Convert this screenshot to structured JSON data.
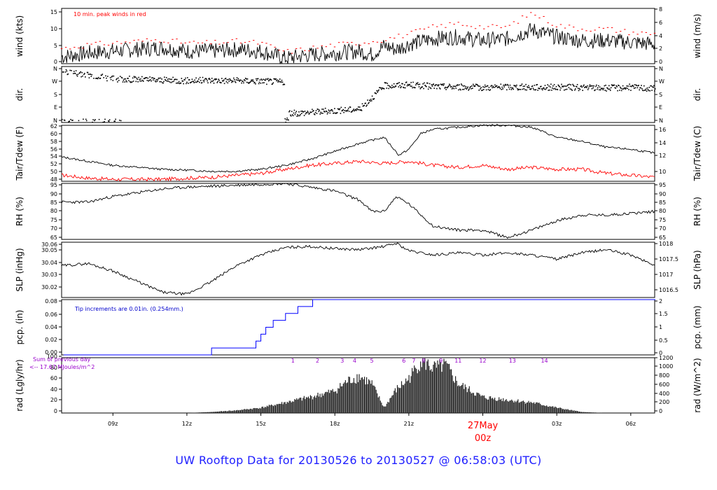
{
  "title": "UW Rooftop Data for 20130526  to  20130527 @ 06:58:03  (UTC)",
  "colors": {
    "frame": "#000000",
    "series": "#000000",
    "tdew": "#ff0000",
    "pcp": "#0000ff",
    "note_red": "#ff0000",
    "note_blue": "#0000cc",
    "purple": "#9900cc",
    "date_label": "#ff0000",
    "title": "#2020ff"
  },
  "time_axis": {
    "tick_labels": [
      "09z",
      "12z",
      "15z",
      "18z",
      "21z",
      "00z",
      "03z",
      "06z"
    ],
    "hours": [
      9,
      12,
      15,
      18,
      21,
      24,
      27,
      30
    ],
    "date_label": "27May",
    "date_sub_label": "00z",
    "start_hour": 6.92,
    "end_hour": 30.97
  },
  "panels": [
    {
      "id": "wind",
      "left_label": "wind (kts)",
      "right_label": "wind (m/s)",
      "left_ticks": [
        0,
        5,
        10,
        15
      ],
      "right_ticks": [
        0,
        2,
        4,
        6,
        8
      ],
      "ylim": [
        0,
        15.5
      ],
      "annotation": "10 min. peak winds in red"
    },
    {
      "id": "dir",
      "left_label": "dir.",
      "right_label": "dir.",
      "left_ticks": [
        "N",
        "E",
        "S",
        "W",
        "N"
      ],
      "right_ticks": [
        "N",
        "E",
        "S",
        "W",
        "N"
      ],
      "ylim": [
        0,
        360
      ]
    },
    {
      "id": "temp",
      "left_label": "Tair/Tdew (F)",
      "right_label": "Tair/Tdew (C)",
      "left_ticks": [
        48,
        50,
        52,
        54,
        56,
        58,
        60,
        62
      ],
      "right_ticks": [
        10,
        12,
        14,
        16
      ],
      "ylim": [
        48,
        62
      ]
    },
    {
      "id": "rh",
      "left_label": "RH (%)",
      "right_label": "RH (%)",
      "left_ticks": [
        65,
        70,
        75,
        80,
        85,
        90,
        95
      ],
      "right_ticks": [
        65,
        70,
        75,
        80,
        85,
        90,
        95
      ],
      "ylim": [
        65,
        95
      ]
    },
    {
      "id": "slp",
      "left_label": "SLP (inHg)",
      "right_label": "SLP (hPa)",
      "left_ticks": [
        "30.02",
        "30.03",
        "30.04",
        "30.05",
        "30.06"
      ],
      "right_ticks": [
        "1016.5",
        "1017",
        "1017.5",
        "1018"
      ],
      "ylim": [
        30.01,
        30.062
      ]
    },
    {
      "id": "pcp",
      "left_label": "pcp. (in)",
      "right_label": "pcp. (mm)",
      "left_ticks": [
        "0.00",
        "0.02",
        "0.04",
        "0.06",
        "0.08"
      ],
      "right_ticks": [
        "0",
        "0.5",
        "1",
        "1.5",
        "2"
      ],
      "ylim": [
        0,
        0.08
      ],
      "annotation": "Tip increments are 0.01in. (0.254mm.)"
    },
    {
      "id": "rad",
      "left_label": "rad (Lgly/hr)",
      "right_label": "rad (W/m^2)",
      "left_ticks": [
        0,
        20,
        40,
        60,
        80,
        100
      ],
      "right_ticks": [
        0,
        200,
        400,
        600,
        800,
        1000,
        1200
      ],
      "ylim": [
        0,
        105
      ],
      "note_line1": "Sum of previous day",
      "note_line2": "<-- 17.67 MJoules/m^2",
      "hour_marks": [
        "1",
        "2",
        "3",
        "4",
        "5",
        "6",
        "7",
        "8",
        "9",
        "11",
        "12",
        "13",
        "14"
      ]
    }
  ],
  "chart_data": {
    "type": "line",
    "x_unit": "UTC hour from 20130526 00z",
    "series": [
      {
        "name": "wind",
        "panel": "wind",
        "x": [
          7,
          8,
          9,
          10,
          11,
          12,
          13,
          14,
          15,
          16,
          17,
          18,
          19,
          19.5,
          20,
          20.5,
          21,
          22,
          23,
          24,
          25,
          26,
          27,
          28,
          29,
          30,
          31
        ],
        "values": [
          2,
          3,
          3.5,
          4,
          4.5,
          3.5,
          3.5,
          4,
          3.5,
          1.5,
          2.5,
          3,
          3.5,
          2.5,
          5,
          4,
          5.5,
          7,
          7.5,
          6.5,
          7,
          9.5,
          7.5,
          6.5,
          6.5,
          6,
          5.5
        ]
      },
      {
        "name": "wind_peak",
        "panel": "wind",
        "x": [
          7,
          8,
          9,
          10,
          11,
          12,
          13,
          14,
          15,
          16,
          17,
          18,
          19,
          20,
          21,
          22,
          23,
          24,
          25,
          26,
          27,
          28,
          29,
          30,
          31
        ],
        "values": [
          4,
          5,
          5.5,
          6,
          6.5,
          5.5,
          5.5,
          6,
          5.5,
          3,
          4,
          5,
          5.5,
          6.5,
          8,
          10,
          11,
          10,
          10,
          14,
          10.5,
          9.5,
          9.5,
          8.5,
          8
        ]
      },
      {
        "name": "dir",
        "panel": "dir",
        "x": [
          7,
          8,
          9,
          10,
          11,
          12,
          13,
          14,
          15,
          15.9,
          16.1,
          17,
          18,
          19,
          20,
          21,
          22,
          23,
          24,
          25,
          26,
          27,
          28,
          29,
          30,
          31
        ],
        "values": [
          330,
          310,
          285,
          280,
          275,
          272,
          275,
          272,
          270,
          265,
          60,
          70,
          80,
          90,
          240,
          245,
          235,
          232,
          228,
          232,
          230,
          230,
          228,
          225,
          230,
          220
        ]
      },
      {
        "name": "Tair",
        "panel": "temp",
        "x": [
          7,
          8,
          9,
          10,
          11,
          12,
          13,
          14,
          15,
          16,
          17,
          18,
          19,
          20,
          20.6,
          21,
          21.5,
          22,
          23,
          24,
          25,
          26,
          27,
          28,
          29,
          30,
          31
        ],
        "values": [
          54,
          53,
          52,
          51.5,
          51,
          50.8,
          50.5,
          50.5,
          51,
          52,
          53.5,
          55.5,
          57.5,
          59,
          54.5,
          56,
          60,
          61,
          61.5,
          62,
          62,
          61.5,
          59,
          58,
          56.5,
          56,
          55
        ]
      },
      {
        "name": "Tdew",
        "panel": "temp",
        "x": [
          7,
          8,
          9,
          10,
          11,
          12,
          13,
          14,
          15,
          16,
          17,
          18,
          19,
          20,
          21,
          22,
          23,
          24,
          25,
          26,
          27,
          28,
          29,
          30,
          31
        ],
        "values": [
          49.5,
          48.8,
          48.5,
          48.5,
          48.5,
          48.8,
          49,
          49.5,
          50,
          51,
          52,
          52.5,
          53,
          52.5,
          53,
          52,
          51.5,
          52,
          51,
          51.5,
          51,
          51,
          50,
          49.5,
          49
        ]
      },
      {
        "name": "RH",
        "panel": "rh",
        "x": [
          7,
          8,
          9,
          10,
          11,
          12,
          13,
          14,
          15,
          16,
          17,
          18,
          19,
          19.5,
          20,
          20.5,
          21,
          22,
          23,
          24,
          25,
          26,
          27,
          28,
          29,
          30,
          31
        ],
        "values": [
          85,
          85,
          88,
          90,
          92,
          93,
          93.5,
          94,
          94.5,
          95,
          93,
          91,
          86,
          80,
          80,
          88,
          84,
          72,
          70,
          70,
          66,
          70,
          75,
          78,
          78,
          79,
          80
        ]
      },
      {
        "name": "SLP",
        "panel": "slp",
        "x": [
          7,
          8,
          9,
          10,
          11,
          12,
          13,
          14,
          15,
          16,
          17,
          18,
          19,
          20,
          20.5,
          21,
          22,
          23,
          24,
          25,
          26,
          27,
          28,
          29,
          30,
          31
        ],
        "values": [
          30.04,
          30.042,
          30.035,
          30.025,
          30.015,
          30.013,
          30.025,
          30.04,
          30.05,
          30.057,
          30.058,
          30.056,
          30.055,
          30.058,
          30.061,
          30.054,
          30.05,
          30.052,
          30.05,
          30.052,
          30.05,
          30.046,
          30.052,
          30.055,
          30.05,
          30.04
        ]
      },
      {
        "name": "pcp",
        "panel": "pcp",
        "x": [
          7,
          13,
          14.8,
          15,
          15.2,
          15.5,
          16,
          16.2,
          16.5,
          17.1,
          31
        ],
        "values": [
          0,
          0.01,
          0.02,
          0.03,
          0.04,
          0.05,
          0.06,
          0.06,
          0.07,
          0.08,
          0.08
        ]
      },
      {
        "name": "rad",
        "panel": "rad",
        "x": [
          7,
          10,
          12,
          13,
          14,
          15,
          16,
          17,
          18,
          18.5,
          19,
          19.5,
          20,
          20.5,
          21,
          21.5,
          22,
          22.5,
          23,
          24,
          25,
          26,
          27,
          28,
          29,
          30,
          31
        ],
        "values": [
          0,
          0,
          0,
          2,
          5,
          10,
          20,
          30,
          42,
          60,
          70,
          55,
          10,
          45,
          65,
          100,
          85,
          90,
          55,
          30,
          25,
          20,
          10,
          2,
          0,
          0,
          0
        ]
      }
    ]
  }
}
